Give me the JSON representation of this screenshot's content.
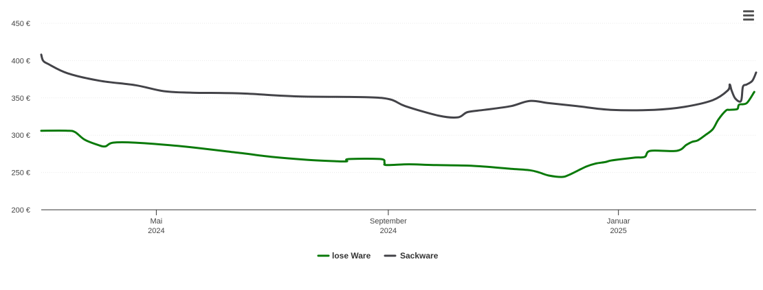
{
  "chart_data": {
    "type": "line",
    "x_unit": "date",
    "ylim": [
      200,
      450
    ],
    "xlim": [
      "2024-03-01",
      "2025-02-28"
    ],
    "y_ticks": [
      {
        "value": 200,
        "label": "200 €"
      },
      {
        "value": 250,
        "label": "250 €"
      },
      {
        "value": 300,
        "label": "300 €"
      },
      {
        "value": 350,
        "label": "350 €"
      },
      {
        "value": 400,
        "label": "400 €"
      },
      {
        "value": 450,
        "label": "450 €"
      }
    ],
    "x_ticks": [
      {
        "date": "2024-05-01",
        "month": "Mai",
        "year": "2024"
      },
      {
        "date": "2024-09-01",
        "month": "September",
        "year": "2024"
      },
      {
        "date": "2025-01-01",
        "month": "Januar",
        "year": "2025"
      }
    ],
    "grid": true,
    "legend_position": "bottom-center",
    "series": [
      {
        "name": "lose Ware",
        "color": "#0a7a0a",
        "points": [
          [
            "2024-03-01",
            306
          ],
          [
            "2024-03-15",
            306
          ],
          [
            "2024-03-19",
            304
          ],
          [
            "2024-03-24",
            294
          ],
          [
            "2024-03-31",
            287
          ],
          [
            "2024-04-04",
            285
          ],
          [
            "2024-04-08",
            290
          ],
          [
            "2024-04-20",
            290
          ],
          [
            "2024-05-15",
            285
          ],
          [
            "2024-06-15",
            276
          ],
          [
            "2024-07-01",
            271
          ],
          [
            "2024-07-20",
            267
          ],
          [
            "2024-08-05",
            265
          ],
          [
            "2024-08-10",
            265
          ],
          [
            "2024-08-11",
            268
          ],
          [
            "2024-08-28",
            268
          ],
          [
            "2024-08-30",
            263
          ],
          [
            "2024-08-31",
            260
          ],
          [
            "2024-09-12",
            261
          ],
          [
            "2024-09-25",
            260
          ],
          [
            "2024-10-15",
            259
          ],
          [
            "2024-11-05",
            255
          ],
          [
            "2024-11-15",
            253
          ],
          [
            "2024-11-20",
            250
          ],
          [
            "2024-11-25",
            246
          ],
          [
            "2024-12-02",
            244
          ],
          [
            "2024-12-06",
            247
          ],
          [
            "2024-12-15",
            258
          ],
          [
            "2024-12-20",
            262
          ],
          [
            "2024-12-25",
            264
          ],
          [
            "2024-12-28",
            266
          ],
          [
            "2025-01-03",
            268
          ],
          [
            "2025-01-10",
            270
          ],
          [
            "2025-01-15",
            271
          ],
          [
            "2025-01-18",
            279
          ],
          [
            "2025-02-01",
            279
          ],
          [
            "2025-02-06",
            287
          ],
          [
            "2025-02-09",
            291
          ],
          [
            "2025-02-12",
            293
          ],
          [
            "2025-02-16",
            300
          ],
          [
            "2025-02-20",
            308
          ],
          [
            "2025-02-23",
            321
          ],
          [
            "2025-02-27",
            333
          ],
          [
            "2025-03-01",
            334
          ],
          [
            "2025-03-05",
            335
          ],
          [
            "2025-03-06",
            341
          ],
          [
            "2025-03-10",
            343
          ],
          [
            "2025-03-14",
            358
          ]
        ]
      },
      {
        "name": "Sackware",
        "color": "#434348",
        "points": [
          [
            "2024-03-01",
            408
          ],
          [
            "2024-03-02",
            400
          ],
          [
            "2024-03-05",
            395
          ],
          [
            "2024-03-15",
            383
          ],
          [
            "2024-04-01",
            373
          ],
          [
            "2024-04-20",
            367
          ],
          [
            "2024-05-05",
            359
          ],
          [
            "2024-05-20",
            357
          ],
          [
            "2024-06-15",
            356
          ],
          [
            "2024-07-15",
            352
          ],
          [
            "2024-08-20",
            351
          ],
          [
            "2024-09-02",
            348
          ],
          [
            "2024-09-10",
            339
          ],
          [
            "2024-09-28",
            326
          ],
          [
            "2024-10-08",
            324
          ],
          [
            "2024-10-13",
            331
          ],
          [
            "2024-10-22",
            334
          ],
          [
            "2024-11-05",
            339
          ],
          [
            "2024-11-15",
            346
          ],
          [
            "2024-11-25",
            343
          ],
          [
            "2024-12-10",
            339
          ],
          [
            "2024-12-28",
            334
          ],
          [
            "2025-01-20",
            334
          ],
          [
            "2025-02-05",
            338
          ],
          [
            "2025-02-20",
            347
          ],
          [
            "2025-02-28",
            360
          ],
          [
            "2025-03-01",
            368
          ],
          [
            "2025-03-02",
            360
          ],
          [
            "2025-03-04",
            349
          ],
          [
            "2025-03-07",
            346
          ],
          [
            "2025-03-08",
            365
          ],
          [
            "2025-03-10",
            368
          ],
          [
            "2025-03-13",
            373
          ],
          [
            "2025-03-15",
            384
          ]
        ]
      }
    ]
  },
  "ui": {
    "menu_icon": "hamburger-menu-icon"
  }
}
